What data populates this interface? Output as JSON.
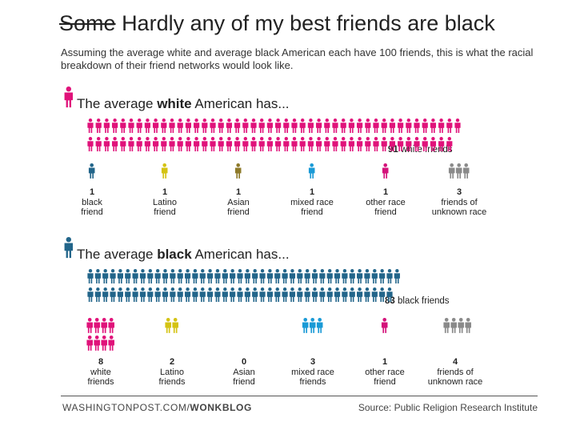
{
  "title": {
    "struck": "Some",
    "rest": "Hardly any of my best friends are black"
  },
  "subtitle": "Assuming the average white and average black American each have 100 friends, this is what the racial breakdown of their friend networks would look like.",
  "colors": {
    "white": "#e0127a",
    "black": "#22658a",
    "latino": "#d4c313",
    "asian": "#8e7a2a",
    "mixed": "#1a9ad6",
    "other": "#d4127a",
    "unknown": "#8a8a8a"
  },
  "chart_data": [
    {
      "type": "table",
      "heading": {
        "pre": "The average ",
        "bold": "white",
        "post": " American has..."
      },
      "main": {
        "value": 91,
        "label_num": "91",
        "label_text": "white friends",
        "color_key": "white"
      },
      "categories": [
        {
          "num": "1",
          "line1": "black",
          "line2": "friend",
          "value": 1,
          "color_key": "black"
        },
        {
          "num": "1",
          "line1": "Latino",
          "line2": "friend",
          "value": 1,
          "color_key": "latino"
        },
        {
          "num": "1",
          "line1": "Asian",
          "line2": "friend",
          "value": 1,
          "color_key": "asian"
        },
        {
          "num": "1",
          "line1": "mixed race",
          "line2": "friend",
          "value": 1,
          "color_key": "mixed"
        },
        {
          "num": "1",
          "line1": "other race",
          "line2": "friend",
          "value": 1,
          "color_key": "other"
        },
        {
          "num": "3",
          "line1": "friends of",
          "line2": "unknown race",
          "value": 3,
          "color_key": "unknown"
        }
      ]
    },
    {
      "type": "table",
      "heading": {
        "pre": "The average ",
        "bold": "black",
        "post": " American has..."
      },
      "main": {
        "value": 83,
        "label_num": "83",
        "label_text": "black friends",
        "color_key": "black"
      },
      "categories": [
        {
          "num": "8",
          "line1": "white",
          "line2": "friends",
          "value": 8,
          "color_key": "white"
        },
        {
          "num": "2",
          "line1": "Latino",
          "line2": "friends",
          "value": 2,
          "color_key": "latino"
        },
        {
          "num": "0",
          "line1": "Asian",
          "line2": "friend",
          "value": 0,
          "color_key": "asian"
        },
        {
          "num": "3",
          "line1": "mixed race",
          "line2": "friends",
          "value": 3,
          "color_key": "mixed"
        },
        {
          "num": "1",
          "line1": "other race",
          "line2": "friend",
          "value": 1,
          "color_key": "other"
        },
        {
          "num": "4",
          "line1": "friends of",
          "line2": "unknown race",
          "value": 4,
          "color_key": "unknown"
        }
      ]
    }
  ],
  "footer": {
    "site": "WASHINGTONPOST.COM/",
    "section": "WONKBLOG",
    "source": "Source: Public Religion Research Institute"
  }
}
